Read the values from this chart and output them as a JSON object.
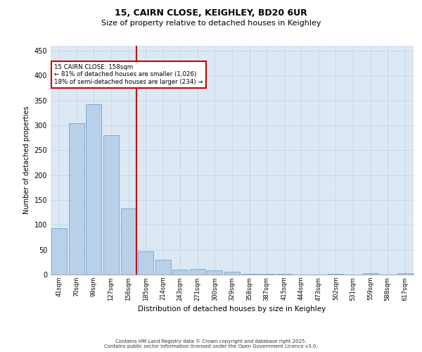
{
  "title_line1": "15, CAIRN CLOSE, KEIGHLEY, BD20 6UR",
  "title_line2": "Size of property relative to detached houses in Keighley",
  "xlabel": "Distribution of detached houses by size in Keighley",
  "ylabel": "Number of detached properties",
  "categories": [
    "41sqm",
    "70sqm",
    "99sqm",
    "127sqm",
    "156sqm",
    "185sqm",
    "214sqm",
    "243sqm",
    "271sqm",
    "300sqm",
    "329sqm",
    "358sqm",
    "387sqm",
    "415sqm",
    "444sqm",
    "473sqm",
    "502sqm",
    "531sqm",
    "559sqm",
    "588sqm",
    "617sqm"
  ],
  "values": [
    93,
    305,
    343,
    280,
    133,
    47,
    30,
    10,
    12,
    8,
    5,
    2,
    1,
    1,
    0,
    0,
    2,
    0,
    3,
    0,
    3
  ],
  "bar_color": "#b8d0e8",
  "bar_edge_color": "#6699cc",
  "highlight_index": 4,
  "annotation_line1": "15 CAIRN CLOSE: 158sqm",
  "annotation_line2": "← 81% of detached houses are smaller (1,026)",
  "annotation_line3": "18% of semi-detached houses are larger (234) →",
  "annotation_box_color": "#ffffff",
  "annotation_box_edge": "#cc0000",
  "red_line_color": "#cc0000",
  "ylim": [
    0,
    460
  ],
  "yticks": [
    0,
    50,
    100,
    150,
    200,
    250,
    300,
    350,
    400,
    450
  ],
  "grid_color": "#c8d8e8",
  "background_color": "#dce8f4",
  "footer_line1": "Contains HM Land Registry data © Crown copyright and database right 2025.",
  "footer_line2": "Contains public sector information licensed under the Open Government Licence v3.0."
}
